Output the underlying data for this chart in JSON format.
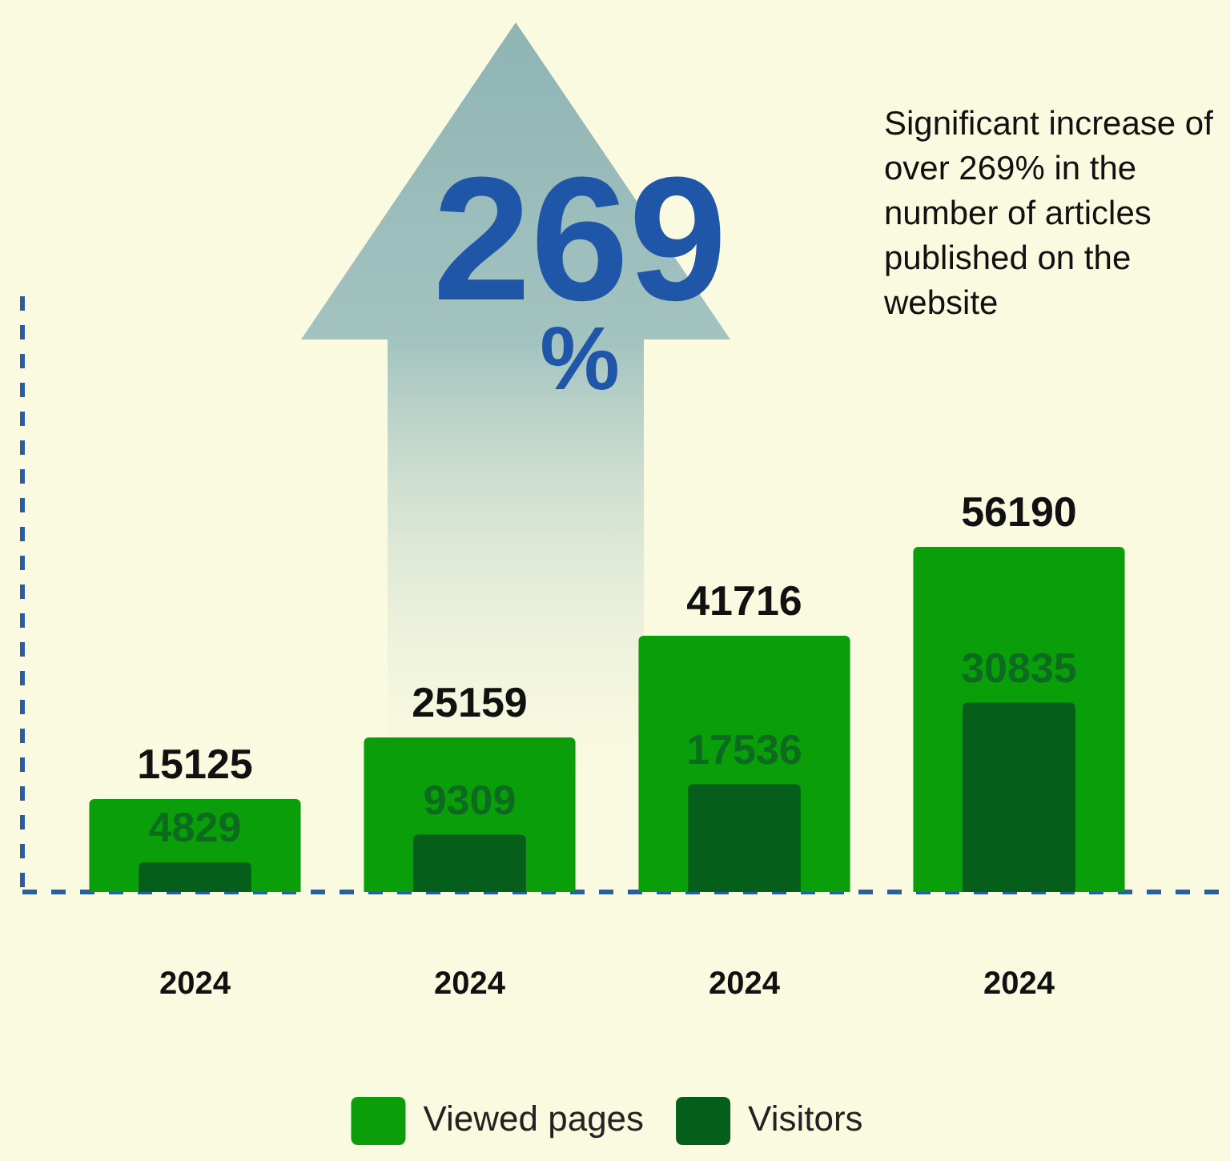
{
  "chart_data": {
    "type": "bar",
    "categories": [
      "2024",
      "2024",
      "2024",
      "2024"
    ],
    "series": [
      {
        "name": "Viewed pages",
        "color": "#0a9e0a",
        "values": [
          15125,
          25159,
          41716,
          56190
        ]
      },
      {
        "name": "Visitors",
        "color": "#055e1a",
        "values": [
          4829,
          9309,
          17536,
          30835
        ]
      }
    ],
    "ylim": [
      0,
      97000
    ],
    "tick_labels": "x",
    "data_labels": true,
    "grid": false,
    "legend": "bottom",
    "annotations": [
      "269 %",
      "Significant increase of over 269% in the number of articles published on the website"
    ]
  }
}
